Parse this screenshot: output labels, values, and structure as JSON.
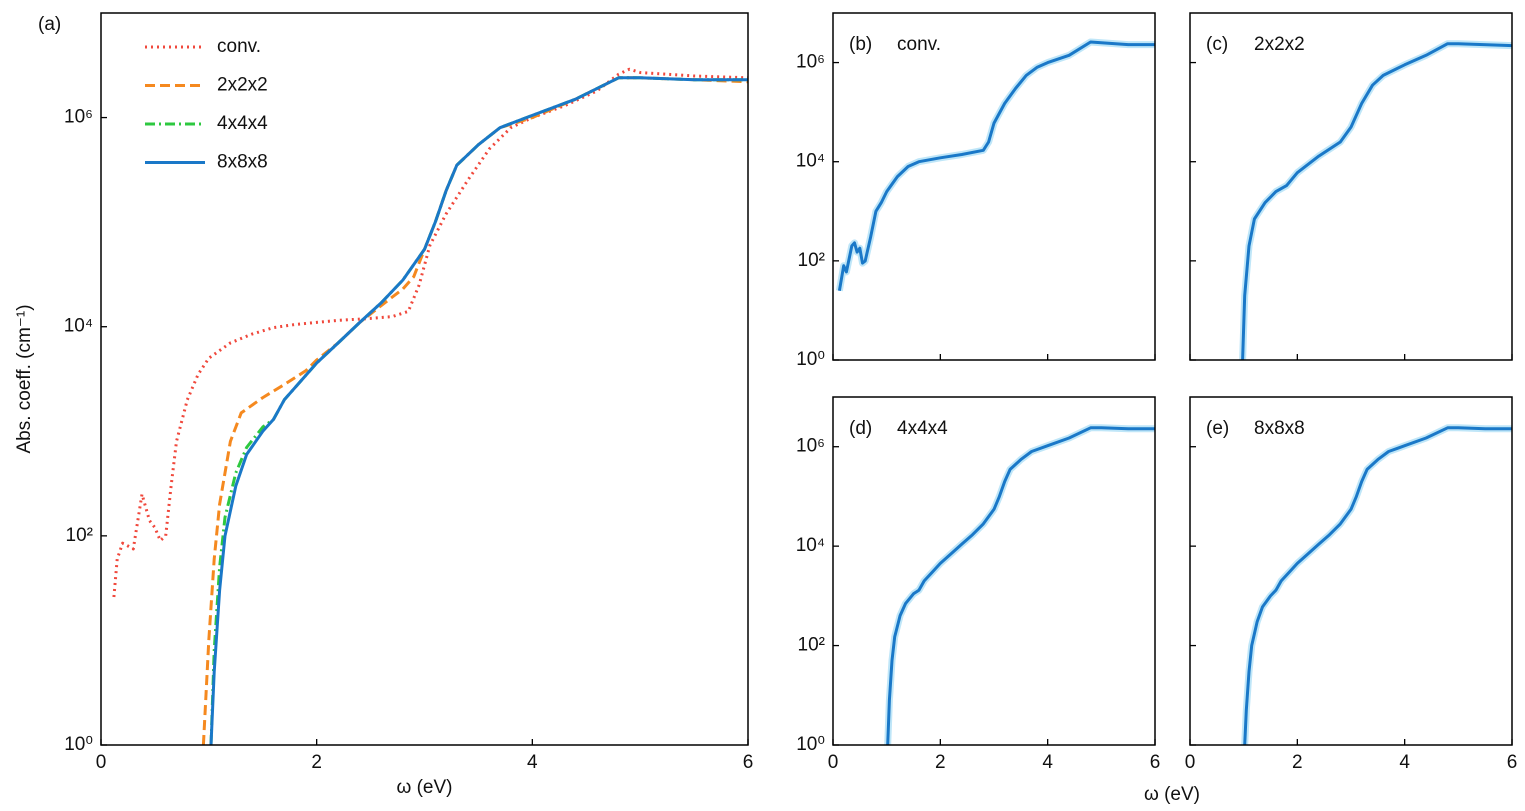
{
  "shared_xlabel": "ω (eV)",
  "chart_data": [
    {
      "type": "line",
      "panel": "(a)",
      "ylabel": "Abs. coeff. (cm⁻¹)",
      "xlabel": "ω (eV)",
      "log_y": true,
      "xlim": [
        0,
        6
      ],
      "ylim": [
        1,
        10000000
      ],
      "xticks": [
        0,
        2,
        4,
        6
      ],
      "yticks": [
        {
          "value": 1,
          "label": "10⁰"
        },
        {
          "value": 100,
          "label": "10²"
        },
        {
          "value": 10000,
          "label": "10⁴"
        },
        {
          "value": 1000000,
          "label": "10⁶"
        }
      ],
      "legend": "upper left",
      "series": [
        {
          "name": "conv.",
          "color": "#f0483c",
          "dash": "dotted",
          "x": [
            0.12,
            0.15,
            0.2,
            0.25,
            0.3,
            0.38,
            0.45,
            0.5,
            0.55,
            0.6,
            0.65,
            0.7,
            0.8,
            0.9,
            1.0,
            1.2,
            1.4,
            1.6,
            1.8,
            2.0,
            2.2,
            2.5,
            2.7,
            2.85,
            2.95,
            3.05,
            3.2,
            3.4,
            3.6,
            3.8,
            4.0,
            4.3,
            4.6,
            4.8,
            4.9,
            5.0,
            5.5,
            6.0
          ],
          "values": [
            26,
            60,
            85,
            80,
            75,
            250,
            140,
            120,
            90,
            100,
            300,
            800,
            2000,
            3500,
            5000,
            7000,
            8500,
            9800,
            10500,
            11000,
            11500,
            12000,
            12500,
            14000,
            25000,
            60000,
            120000,
            250000,
            500000,
            800000,
            1000000,
            1300000,
            1800000,
            2600000,
            2900000,
            2700000,
            2500000,
            2400000
          ]
        },
        {
          "name": "2x2x2",
          "color": "#f5891f",
          "dash": "dashed",
          "x": [
            0.95,
            1.0,
            1.05,
            1.1,
            1.2,
            1.3,
            1.5,
            1.7,
            1.9,
            2.0,
            2.2,
            2.4,
            2.6,
            2.8,
            2.9,
            3.0,
            3.1,
            3.2,
            3.3,
            3.5,
            3.7,
            4.0,
            4.4,
            4.8,
            5.0,
            5.5,
            6.0
          ],
          "values": [
            1,
            10,
            60,
            200,
            800,
            1500,
            2100,
            2800,
            3800,
            4800,
            7000,
            11000,
            16000,
            23000,
            30000,
            55000,
            100000,
            200000,
            350000,
            550000,
            800000,
            1000000,
            1500000,
            2400000,
            2400000,
            2300000,
            2200000
          ]
        },
        {
          "name": "4x4x4",
          "color": "#2ec840",
          "dash": "dashdot",
          "x": [
            1.02,
            1.05,
            1.1,
            1.15,
            1.25,
            1.35,
            1.5,
            1.6,
            1.7,
            1.85,
            2.0,
            2.2,
            2.4,
            2.6,
            2.8,
            3.0,
            3.1,
            3.2,
            3.3,
            3.5,
            3.7,
            4.0,
            4.4,
            4.8,
            5.0,
            5.5,
            6.0
          ],
          "values": [
            1,
            8,
            50,
            150,
            400,
            700,
            1100,
            1300,
            2000,
            3000,
            4500,
            7000,
            11000,
            17000,
            28000,
            55000,
            100000,
            200000,
            350000,
            550000,
            800000,
            1050000,
            1500000,
            2400000,
            2400000,
            2300000,
            2300000
          ]
        },
        {
          "name": "8x8x8",
          "color": "#1a78c8",
          "dash": "solid",
          "x": [
            1.02,
            1.05,
            1.1,
            1.15,
            1.25,
            1.35,
            1.5,
            1.6,
            1.7,
            1.85,
            2.0,
            2.2,
            2.4,
            2.6,
            2.8,
            3.0,
            3.1,
            3.2,
            3.3,
            3.5,
            3.7,
            4.0,
            4.4,
            4.8,
            5.0,
            5.5,
            6.0
          ],
          "values": [
            1,
            5,
            30,
            100,
            300,
            600,
            1000,
            1300,
            2000,
            3000,
            4500,
            7000,
            11000,
            17000,
            28000,
            55000,
            100000,
            200000,
            350000,
            550000,
            800000,
            1050000,
            1500000,
            2400000,
            2400000,
            2300000,
            2300000
          ]
        }
      ]
    },
    {
      "type": "line",
      "panel": "(b)",
      "title": "conv.",
      "log_y": true,
      "xlim": [
        0,
        6
      ],
      "ylim": [
        1,
        10000000
      ],
      "xticks": [
        0,
        2,
        4,
        6
      ],
      "xtick_labels": false,
      "yticks": [
        {
          "value": 1,
          "label": "10⁰"
        },
        {
          "value": 100,
          "label": "10²"
        },
        {
          "value": 10000,
          "label": "10⁴"
        },
        {
          "value": 1000000,
          "label": "10⁶"
        }
      ],
      "series": [
        {
          "color": "#1a78c8",
          "dash": "solid",
          "x": [
            0.12,
            0.2,
            0.25,
            0.35,
            0.4,
            0.45,
            0.5,
            0.55,
            0.6,
            0.7,
            0.8,
            0.9,
            1.0,
            1.2,
            1.4,
            1.6,
            2.0,
            2.4,
            2.8,
            2.9,
            3.0,
            3.2,
            3.4,
            3.6,
            3.8,
            4.0,
            4.4,
            4.8,
            5.0,
            5.5,
            6.0
          ],
          "values": [
            25,
            80,
            60,
            200,
            230,
            150,
            180,
            90,
            100,
            300,
            1000,
            1500,
            2500,
            5000,
            8000,
            10000,
            12000,
            14000,
            17000,
            25000,
            60000,
            150000,
            300000,
            550000,
            800000,
            1000000,
            1400000,
            2600000,
            2500000,
            2300000,
            2300000
          ]
        }
      ]
    },
    {
      "type": "line",
      "panel": "(c)",
      "title": "2x2x2",
      "log_y": true,
      "xlim": [
        0,
        6
      ],
      "ylim": [
        1,
        10000000
      ],
      "xticks": [
        0,
        2,
        4,
        6
      ],
      "xtick_labels": false,
      "yticks": [
        1,
        100,
        10000,
        1000000
      ],
      "ytick_labels": false,
      "series": [
        {
          "color": "#1a78c8",
          "dash": "solid",
          "x": [
            0.98,
            1.02,
            1.1,
            1.2,
            1.4,
            1.6,
            1.8,
            2.0,
            2.4,
            2.8,
            3.0,
            3.2,
            3.4,
            3.6,
            4.0,
            4.4,
            4.8,
            5.0,
            6.0
          ],
          "values": [
            1,
            20,
            200,
            700,
            1500,
            2500,
            3300,
            6000,
            13000,
            25000,
            50000,
            150000,
            350000,
            550000,
            900000,
            1400000,
            2400000,
            2400000,
            2200000
          ]
        }
      ]
    },
    {
      "type": "line",
      "panel": "(d)",
      "title": "4x4x4",
      "log_y": true,
      "xlim": [
        0,
        6
      ],
      "ylim": [
        1,
        10000000
      ],
      "xticks": [
        0,
        2,
        4,
        6
      ],
      "yticks": [
        {
          "value": 1,
          "label": "10⁰"
        },
        {
          "value": 100,
          "label": "10²"
        },
        {
          "value": 10000,
          "label": "10⁴"
        },
        {
          "value": 1000000,
          "label": "10⁶"
        }
      ],
      "series": [
        {
          "color": "#1a78c8",
          "dash": "solid",
          "x": [
            1.02,
            1.05,
            1.1,
            1.15,
            1.25,
            1.35,
            1.5,
            1.6,
            1.7,
            1.85,
            2.0,
            2.2,
            2.4,
            2.6,
            2.8,
            3.0,
            3.1,
            3.2,
            3.3,
            3.5,
            3.7,
            4.0,
            4.4,
            4.8,
            5.0,
            5.5,
            6.0
          ],
          "values": [
            1,
            8,
            50,
            150,
            400,
            700,
            1100,
            1300,
            2000,
            3000,
            4500,
            7000,
            11000,
            17000,
            28000,
            55000,
            100000,
            200000,
            350000,
            550000,
            800000,
            1050000,
            1500000,
            2400000,
            2400000,
            2300000,
            2300000
          ]
        }
      ]
    },
    {
      "type": "line",
      "panel": "(e)",
      "title": "8x8x8",
      "log_y": true,
      "xlim": [
        0,
        6
      ],
      "ylim": [
        1,
        10000000
      ],
      "xticks": [
        0,
        2,
        4,
        6
      ],
      "yticks": [
        1,
        100,
        10000,
        1000000
      ],
      "ytick_labels": false,
      "series": [
        {
          "color": "#1a78c8",
          "dash": "solid",
          "x": [
            1.02,
            1.05,
            1.1,
            1.15,
            1.25,
            1.35,
            1.5,
            1.6,
            1.7,
            1.85,
            2.0,
            2.2,
            2.4,
            2.6,
            2.8,
            3.0,
            3.1,
            3.2,
            3.3,
            3.5,
            3.7,
            4.0,
            4.4,
            4.8,
            5.0,
            5.5,
            6.0
          ],
          "values": [
            1,
            5,
            30,
            100,
            300,
            600,
            1000,
            1300,
            2000,
            3000,
            4500,
            7000,
            11000,
            17000,
            28000,
            55000,
            100000,
            200000,
            350000,
            550000,
            800000,
            1050000,
            1500000,
            2400000,
            2400000,
            2300000,
            2300000
          ]
        }
      ]
    }
  ]
}
